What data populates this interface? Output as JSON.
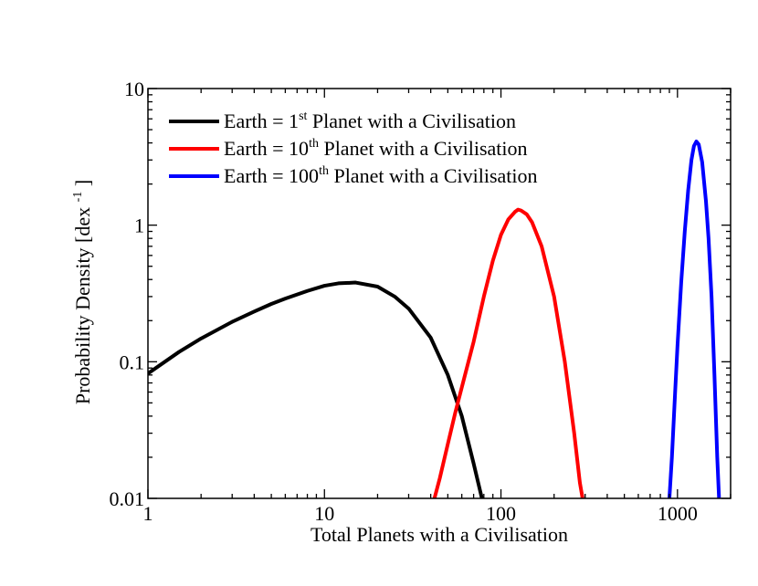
{
  "chart_data": {
    "type": "line",
    "title": "",
    "xlabel": "Total Planets with a Civilisation",
    "ylabel_main": "Probability Density [dex",
    "ylabel_sup": "-1",
    "ylabel_end": "]",
    "xscale": "log",
    "yscale": "log",
    "xlim": [
      1,
      2000
    ],
    "ylim": [
      0.01,
      10
    ],
    "grid": false,
    "legend_placement": "top-left",
    "x_ticks": [
      {
        "value": 1,
        "label": "1"
      },
      {
        "value": 10,
        "label": "10"
      },
      {
        "value": 100,
        "label": "100"
      },
      {
        "value": 1000,
        "label": "1000"
      }
    ],
    "y_ticks": [
      {
        "value": 0.01,
        "label": "0.01"
      },
      {
        "value": 0.1,
        "label": "0.1"
      },
      {
        "value": 1,
        "label": "1"
      },
      {
        "value": 10,
        "label": "10"
      }
    ],
    "series": [
      {
        "name_pre": "Earth = 1",
        "name_sup": "st",
        "name_post": " Planet with a Civilisation",
        "color": "#000000",
        "x": [
          1,
          1.5,
          2,
          3,
          4,
          5,
          6,
          8,
          10,
          12,
          15,
          20,
          25,
          30,
          40,
          50,
          60,
          70,
          78
        ],
        "y": [
          0.082,
          0.118,
          0.148,
          0.196,
          0.233,
          0.265,
          0.29,
          0.33,
          0.36,
          0.375,
          0.38,
          0.355,
          0.3,
          0.245,
          0.15,
          0.08,
          0.04,
          0.018,
          0.01
        ]
      },
      {
        "name_pre": "Earth = 10",
        "name_sup": "th",
        "name_post": " Planet with a Civilisation",
        "color": "#ff0000",
        "x": [
          42,
          45,
          50,
          55,
          60,
          70,
          80,
          90,
          100,
          110,
          120,
          125,
          130,
          140,
          150,
          170,
          200,
          230,
          260,
          280,
          290
        ],
        "y": [
          0.01,
          0.014,
          0.025,
          0.042,
          0.065,
          0.14,
          0.3,
          0.55,
          0.85,
          1.1,
          1.25,
          1.3,
          1.28,
          1.2,
          1.05,
          0.7,
          0.3,
          0.1,
          0.03,
          0.013,
          0.01
        ]
      },
      {
        "name_pre": "Earth = 100",
        "name_sup": "th",
        "name_post": " Planet with a Civilisation",
        "color": "#0000ff",
        "x": [
          900,
          930,
          970,
          1000,
          1050,
          1100,
          1150,
          1200,
          1240,
          1280,
          1320,
          1380,
          1450,
          1500,
          1560,
          1620,
          1680,
          1720
        ],
        "y": [
          0.01,
          0.02,
          0.06,
          0.13,
          0.38,
          0.9,
          1.8,
          3.0,
          3.8,
          4.1,
          3.9,
          2.9,
          1.5,
          0.8,
          0.3,
          0.08,
          0.02,
          0.01
        ]
      }
    ]
  }
}
